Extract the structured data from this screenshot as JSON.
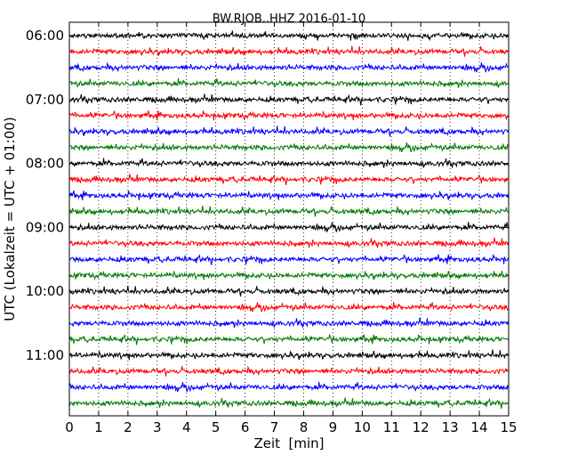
{
  "chart_data": {
    "type": "line",
    "title": "BW.RJOB..HHZ 2016-01-10",
    "xlabel": "Zeit  [min]",
    "ylabel": "UTC (Lokalzeit = UTC + 01:00)",
    "xlim": [
      0,
      15
    ],
    "x_ticks": [
      "0",
      "1",
      "2",
      "3",
      "4",
      "5",
      "6",
      "7",
      "8",
      "9",
      "10",
      "11",
      "12",
      "13",
      "14",
      "15"
    ],
    "y_ticks": [
      "06:00",
      "07:00",
      "08:00",
      "09:00",
      "10:00",
      "11:00"
    ],
    "grid": "vertical dotted",
    "trace_colors": [
      "#000000",
      "#ff0000",
      "#0000ff",
      "#007a00"
    ],
    "trace_count": 24
  }
}
